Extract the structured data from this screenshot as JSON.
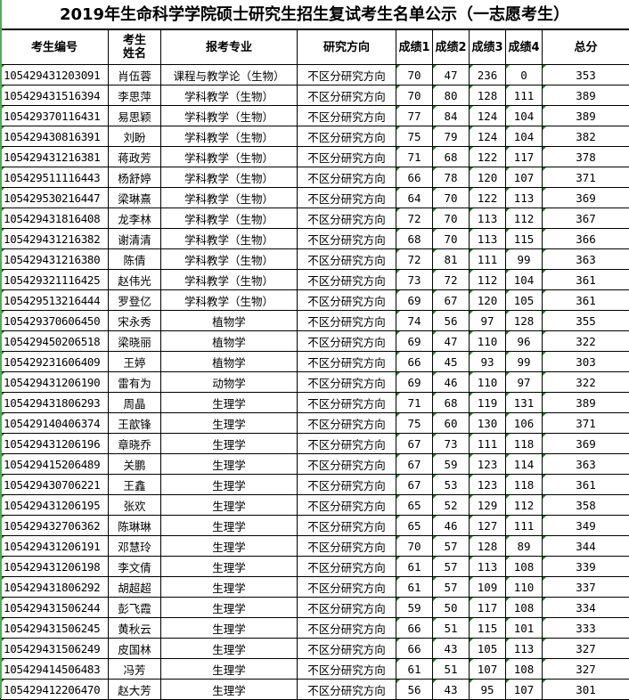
{
  "title": "2019年生命科学学院硕士研究生招生复试考生名单公示（一志愿考生）",
  "headers": [
    "考生编号",
    "考生\n姓名",
    "报考专业",
    "研究方向",
    "成绩1",
    "成绩2",
    "成绩3",
    "成绩4",
    "总分"
  ],
  "colors": {
    "error_marker": "#1a8a1a",
    "left_edge": "#4caf50"
  },
  "rows": [
    [
      "105429431203091",
      "肖伍蓉",
      "课程与教学论（生物）",
      "不区分研究方向",
      "70",
      "47",
      "236",
      "0",
      "353"
    ],
    [
      "105429431516394",
      "李思萍",
      "学科教学（生物）",
      "不区分研究方向",
      "70",
      "80",
      "128",
      "111",
      "389"
    ],
    [
      "105429370116431",
      "易思颖",
      "学科教学（生物）",
      "不区分研究方向",
      "77",
      "84",
      "124",
      "104",
      "389"
    ],
    [
      "105429430816391",
      "刘盼",
      "学科教学（生物）",
      "不区分研究方向",
      "75",
      "79",
      "124",
      "104",
      "382"
    ],
    [
      "105429431216381",
      "蒋政芳",
      "学科教学（生物）",
      "不区分研究方向",
      "71",
      "68",
      "122",
      "117",
      "378"
    ],
    [
      "105429511116443",
      "杨舒婷",
      "学科教学（生物）",
      "不区分研究方向",
      "66",
      "78",
      "120",
      "107",
      "371"
    ],
    [
      "105429530216447",
      "梁琳熹",
      "学科教学（生物）",
      "不区分研究方向",
      "64",
      "70",
      "122",
      "113",
      "369"
    ],
    [
      "105429431816408",
      "龙李林",
      "学科教学（生物）",
      "不区分研究方向",
      "72",
      "70",
      "113",
      "112",
      "367"
    ],
    [
      "105429431216382",
      "谢清清",
      "学科教学（生物）",
      "不区分研究方向",
      "68",
      "70",
      "113",
      "115",
      "366"
    ],
    [
      "105429431216380",
      "陈倩",
      "学科教学（生物）",
      "不区分研究方向",
      "72",
      "81",
      "111",
      "99",
      "363"
    ],
    [
      "105429321116425",
      "赵伟光",
      "学科教学（生物）",
      "不区分研究方向",
      "73",
      "72",
      "112",
      "104",
      "361"
    ],
    [
      "105429513216444",
      "罗登亿",
      "学科教学（生物）",
      "不区分研究方向",
      "69",
      "67",
      "120",
      "105",
      "361"
    ],
    [
      "105429370606450",
      "宋永秀",
      "植物学",
      "不区分研究方向",
      "74",
      "56",
      "97",
      "128",
      "355"
    ],
    [
      "105429450206518",
      "梁晓丽",
      "植物学",
      "不区分研究方向",
      "69",
      "47",
      "110",
      "96",
      "322"
    ],
    [
      "105429231606409",
      "王婷",
      "植物学",
      "不区分研究方向",
      "66",
      "45",
      "93",
      "99",
      "303"
    ],
    [
      "105429431206190",
      "雷有为",
      "动物学",
      "不区分研究方向",
      "69",
      "46",
      "110",
      "97",
      "322"
    ],
    [
      "105429431806293",
      "周晶",
      "生理学",
      "不区分研究方向",
      "71",
      "68",
      "119",
      "131",
      "389"
    ],
    [
      "105429140406374",
      "王歆锋",
      "生理学",
      "不区分研究方向",
      "75",
      "60",
      "130",
      "106",
      "371"
    ],
    [
      "105429431206196",
      "章晓乔",
      "生理学",
      "不区分研究方向",
      "67",
      "73",
      "111",
      "118",
      "369"
    ],
    [
      "105429415206489",
      "关鹏",
      "生理学",
      "不区分研究方向",
      "67",
      "59",
      "123",
      "114",
      "363"
    ],
    [
      "105429430706221",
      "王鑫",
      "生理学",
      "不区分研究方向",
      "67",
      "53",
      "123",
      "118",
      "361"
    ],
    [
      "105429431206195",
      "张欢",
      "生理学",
      "不区分研究方向",
      "65",
      "52",
      "129",
      "112",
      "358"
    ],
    [
      "105429432706362",
      "陈琳琳",
      "生理学",
      "不区分研究方向",
      "65",
      "46",
      "127",
      "111",
      "349"
    ],
    [
      "105429431206191",
      "邓慧玲",
      "生理学",
      "不区分研究方向",
      "70",
      "57",
      "128",
      "89",
      "344"
    ],
    [
      "105429431206198",
      "李文倩",
      "生理学",
      "不区分研究方向",
      "61",
      "57",
      "113",
      "108",
      "339"
    ],
    [
      "105429431806292",
      "胡超超",
      "生理学",
      "不区分研究方向",
      "61",
      "57",
      "109",
      "110",
      "337"
    ],
    [
      "105429431506244",
      "彭飞霞",
      "生理学",
      "不区分研究方向",
      "59",
      "50",
      "117",
      "108",
      "334"
    ],
    [
      "105429431506245",
      "黄秋云",
      "生理学",
      "不区分研究方向",
      "66",
      "51",
      "115",
      "101",
      "333"
    ],
    [
      "105429431506249",
      "皮国林",
      "生理学",
      "不区分研究方向",
      "66",
      "43",
      "105",
      "113",
      "327"
    ],
    [
      "105429414506483",
      "冯芳",
      "生理学",
      "不区分研究方向",
      "61",
      "51",
      "107",
      "108",
      "327"
    ],
    [
      "105429412206470",
      "赵大芳",
      "生理学",
      "不区分研究方向",
      "56",
      "43",
      "95",
      "107",
      "301"
    ]
  ]
}
